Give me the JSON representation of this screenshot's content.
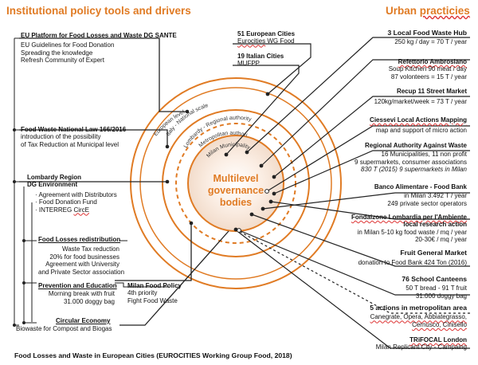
{
  "headers": {
    "left": "Institutional policy tools and drivers",
    "right_word1": "Urban",
    "right_word2": "practicies"
  },
  "left_blocks": {
    "eu": {
      "title": "EU Platform for Food Losses and Waste DG SANTE",
      "lines": [
        "EU Guidelines for Food Donation",
        "Spreading the knowledge",
        "Refresh Community of Expert"
      ]
    },
    "national": {
      "title": "Food Waste National Law 166/2016",
      "lines": [
        "introduction of the possibility",
        "of Tax Reduction at Municipal level"
      ]
    },
    "lombardy": {
      "title1": "Lombardy Region",
      "title2": "DG Environment",
      "lines": [
        "· Agreement with Distributors",
        "· Food Donation Fund",
        "· INTERREG "
      ],
      "interreg_tail": "CircE"
    },
    "redistribution": {
      "title": "Food Losses redistribution",
      "lines": [
        "Waste Tax reduction",
        "20% for food businesses",
        "Agreement with  University",
        "and Private Sector association"
      ]
    },
    "prevention": {
      "title": "Prevention and Education",
      "lines": [
        "Morning break with fruit",
        "31.000 doggy bag"
      ]
    },
    "circular": {
      "title": "Circular Economy",
      "lines": [
        "Biowaste for Compost and Biogas"
      ]
    },
    "milan_policy": {
      "title": "Milan Food Policy",
      "lines": [
        "4th priority",
        "Fight Food Waste"
      ]
    }
  },
  "center_blocks": {
    "eu_cities": {
      "title": "51 European Cities",
      "line_pre": "",
      "line_sq": "Eurocities",
      "line_post": " WG Food"
    },
    "it_cities": {
      "title": "19 Italian Cities",
      "line": "MUFPP"
    }
  },
  "circle_labels": {
    "center": [
      "Multilevel",
      "governance",
      "bodies"
    ],
    "european": "European level",
    "national": "Italy - National scale",
    "regional": "Lombardy - Regional authority",
    "metro": "Metropolitan authority",
    "municipal": "Milan Municipality"
  },
  "practices": [
    {
      "title": "3 Local Food Waste Hub",
      "lines": [
        "250 kg / day = 70 T / year"
      ]
    },
    {
      "title": "Refettorio Ambrosiano",
      "lines": [
        "Soup Kitchen 90 meat / day",
        "87 volonteers = 15 T / year"
      ]
    },
    {
      "title": "Recup 11 Street Market",
      "lines": [
        "120kg/market/week = 73 T / year"
      ]
    },
    {
      "title": "Ciessevi Local Actions Mapping",
      "lines": [
        "map and support of micro action"
      ]
    },
    {
      "title": "Regional Authority Against Waste",
      "lines": [
        "16 Municipalities, 11 non profit",
        "9 supermarkets, consumer associations",
        "830 T (2015) 9 supermarkets in Milan"
      ]
    },
    {
      "title": "Banco Alimentare - Food Bank",
      "lines": [
        "in Milan 3.492 T / year",
        "249 private sector operators"
      ]
    },
    {
      "title": "Fondaizone Lombardia per l'Ambiente",
      "title2": "local research action",
      "lines": [
        "in Milan 5-10 kg food waste / mq / year",
        "20-30€ / mq / year"
      ]
    },
    {
      "title": "Fruit General Market",
      "lines": [
        "donation to Food Bank 424 Ton (2016)"
      ]
    },
    {
      "title": "76 School Canteens",
      "lines": [
        "50 T bread - 91 T fruit",
        "31.000 doggy bag"
      ]
    },
    {
      "title": "5 actions in metropolitan area",
      "lines": [
        "Canegrate, Opera, Abbiategrasso,",
        "Cernusco, Cinisello"
      ]
    },
    {
      "title": "TRiFOCAL London",
      "lines": [
        "Milan Replicant City - Campaing"
      ]
    }
  ],
  "caption": "Food Losses and Waste in European Cities (EUROCITIES Working Group Food, 2018)",
  "colors": {
    "accent": "#e07b24",
    "line": "#222222",
    "circle_fill": "#f2dccb"
  }
}
